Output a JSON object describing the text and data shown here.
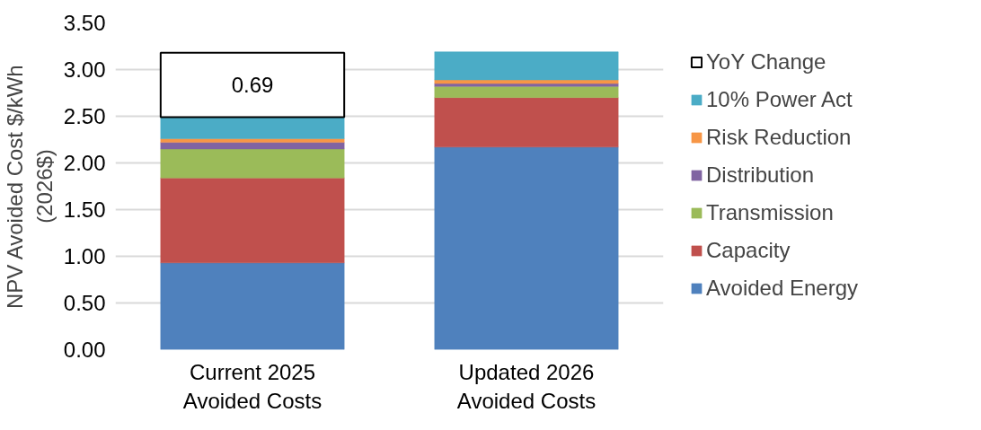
{
  "chart_data": {
    "type": "bar",
    "stacked": true,
    "ylabel": "NPV Avoided Cost $/kWh\n(2026$)",
    "categories": [
      "Current 2025\nAvoided Costs",
      "Updated 2026\nAvoided Costs"
    ],
    "ylim": [
      0,
      3.5
    ],
    "yticks": [
      {
        "value": 0,
        "label": "0.00"
      },
      {
        "value": 0.5,
        "label": "0.50"
      },
      {
        "value": 1,
        "label": "1.00"
      },
      {
        "value": 1.5,
        "label": "1.50"
      },
      {
        "value": 2,
        "label": "2.00"
      },
      {
        "value": 2.5,
        "label": "2.50"
      },
      {
        "value": 3,
        "label": "3.00"
      },
      {
        "value": 3.5,
        "label": "3.50"
      }
    ],
    "grid": "y",
    "legend": "right",
    "series": [
      {
        "name": "Avoided Energy",
        "color": "#4f81bd",
        "values": [
          0.93,
          2.17
        ]
      },
      {
        "name": "Capacity",
        "color": "#c0504d",
        "values": [
          0.91,
          0.53
        ]
      },
      {
        "name": "Transmission",
        "color": "#9bbb59",
        "values": [
          0.31,
          0.12
        ]
      },
      {
        "name": "Distribution",
        "color": "#8064a2",
        "values": [
          0.07,
          0.03
        ]
      },
      {
        "name": "Risk Reduction",
        "color": "#f79646",
        "values": [
          0.04,
          0.04
        ]
      },
      {
        "name": "10% Power Act",
        "color": "#4bacc6",
        "values": [
          0.23,
          0.3
        ]
      },
      {
        "name": "YoY Change",
        "color": "#ffffff",
        "values": [
          0.69,
          null
        ],
        "value_labels": [
          "0.69",
          null
        ]
      }
    ]
  }
}
